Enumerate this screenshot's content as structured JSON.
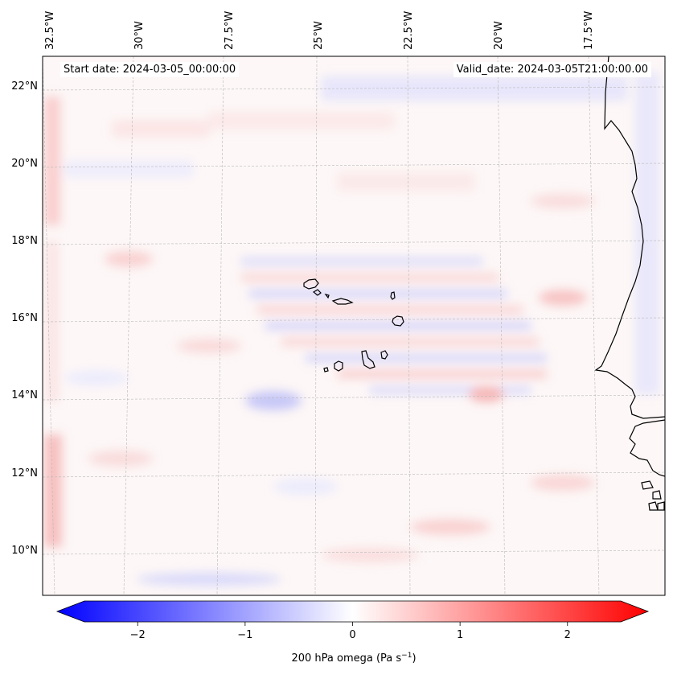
{
  "header": {
    "start_label": "Start date: 2024-03-05_00:00:00",
    "valid_label": "Valid_date: 2024-03-05T21:00:00.00"
  },
  "map": {
    "lon_labels": [
      "32.5°W",
      "30°W",
      "27.5°W",
      "25°W",
      "22.5°W",
      "20°W",
      "17.5°W"
    ],
    "lat_labels": [
      "22°N",
      "20°N",
      "18°N",
      "16°N",
      "14°N",
      "12°N",
      "10°N"
    ],
    "islands": [
      "Santo Antão",
      "São Vicente",
      "Santa Luzia",
      "São Nicolau",
      "Sal",
      "Boa Vista",
      "Maio",
      "Santiago",
      "Fogo",
      "Brava"
    ]
  },
  "colorbar": {
    "ticks": [
      "−2",
      "−1",
      "0",
      "1",
      "2"
    ],
    "tick_values": [
      -2,
      -1,
      0,
      1,
      2
    ],
    "vmin": -2.75,
    "vmax": 2.75,
    "label_main": "200 hPa omega (Pa s",
    "label_sup": "−1",
    "label_end": ")",
    "colors": {
      "min": "#0000ff",
      "mid": "#ffffff",
      "max": "#ff0000"
    }
  }
}
